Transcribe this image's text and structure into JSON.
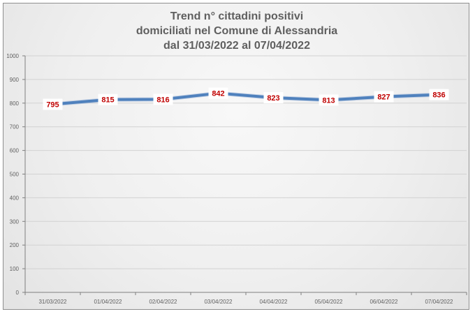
{
  "chart_data": {
    "type": "line",
    "title": "Trend n° cittadini positivi domiciliati nel Comune di Alessandria dal 31/03/2022 al 07/04/2022",
    "title_lines": [
      "Trend n° cittadini positivi",
      "domiciliati nel Comune di Alessandria",
      "dal 31/03/2022 al 07/04/2022"
    ],
    "categories": [
      "31/03/2022",
      "01/04/2022",
      "02/04/2022",
      "03/04/2022",
      "04/04/2022",
      "05/04/2022",
      "06/04/2022",
      "07/04/2022"
    ],
    "series": [
      {
        "values": [
          795,
          815,
          816,
          842,
          823,
          813,
          827,
          836
        ]
      }
    ],
    "ylim": [
      0,
      1000
    ],
    "yticks": [
      0,
      100,
      200,
      300,
      400,
      500,
      600,
      700,
      800,
      900,
      1000
    ],
    "xlabel": "",
    "ylabel": "",
    "grid": true,
    "legend": "none",
    "colors": {
      "line": "#4f81bd",
      "label": "#c00000",
      "grid": "#d2d2d2",
      "axis": "#7f7f7f",
      "text": "#5f5f5f"
    }
  }
}
